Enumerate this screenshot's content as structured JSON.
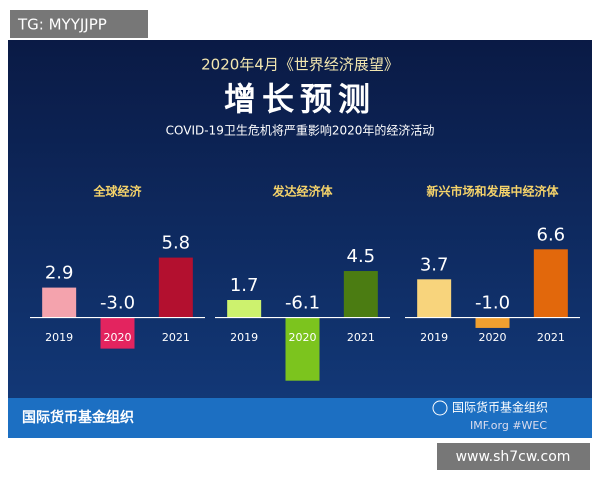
{
  "tag": "TG: MYYJJPP",
  "header": {
    "kicker": "2020年4月《世界经济展望》",
    "title": "增长预测",
    "subtitle": "COVID-19卫生危机将严重影响2020年的经济活动"
  },
  "chart_data": [
    {
      "type": "bar",
      "title": "全球经济",
      "categories": [
        "2019",
        "2020",
        "2021"
      ],
      "values": [
        2.9,
        -3.0,
        5.8
      ],
      "value_labels": [
        "2.9",
        "-3.0",
        "5.8"
      ],
      "colors": [
        "#f4a3ad",
        "#e3245f",
        "#b3102f"
      ],
      "ylim": [
        -7,
        7.5
      ]
    },
    {
      "type": "bar",
      "title": "发达经济体",
      "categories": [
        "2019",
        "2020",
        "2021"
      ],
      "values": [
        1.7,
        -6.1,
        4.5
      ],
      "value_labels": [
        "1.7",
        "-6.1",
        "4.5"
      ],
      "colors": [
        "#cdf26e",
        "#7cc41e",
        "#4b7c12"
      ],
      "ylim": [
        -7,
        7.5
      ]
    },
    {
      "type": "bar",
      "title": "新兴市场和发展中经济体",
      "categories": [
        "2019",
        "2020",
        "2021"
      ],
      "values": [
        3.7,
        -1.0,
        6.6
      ],
      "value_labels": [
        "3.7",
        "-1.0",
        "6.6"
      ],
      "colors": [
        "#f8d47c",
        "#f0a030",
        "#e2680c"
      ],
      "ylim": [
        -7,
        7.5
      ]
    }
  ],
  "footer": {
    "org": "国际货币基金组织",
    "social": "国际货币基金组织",
    "site": "IMF.org  #WEC"
  },
  "watermark": "www.sh7cw.com"
}
